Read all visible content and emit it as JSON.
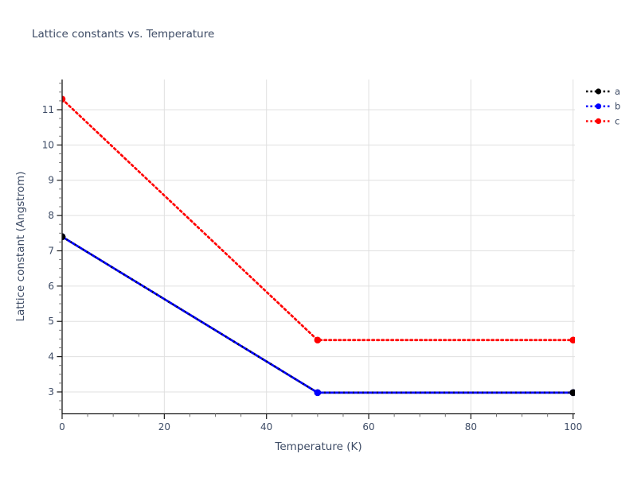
{
  "chart_data": {
    "type": "line",
    "title": "Lattice constants vs. Temperature",
    "xlabel": "Temperature (K)",
    "ylabel": "Lattice constant (Angstrom)",
    "x": [
      0,
      50,
      100
    ],
    "series": [
      {
        "name": "a",
        "color": "#000000",
        "values": [
          7.4,
          2.98,
          2.98
        ],
        "line_style": "dotted",
        "marker": "circle"
      },
      {
        "name": "b",
        "color": "#0000ff",
        "values": [
          7.4,
          2.98,
          2.98
        ],
        "line_style": "dotted",
        "marker": "circle"
      },
      {
        "name": "c",
        "color": "#ff0000",
        "values": [
          11.3,
          4.47,
          4.47
        ],
        "line_style": "dotted",
        "marker": "circle"
      }
    ],
    "xticks": [
      0,
      20,
      40,
      60,
      80,
      100
    ],
    "yticks": [
      3,
      4,
      5,
      6,
      7,
      8,
      9,
      10,
      11
    ],
    "xlim": [
      0,
      100.35
    ],
    "ylim": [
      2.38,
      11.856
    ],
    "x_minor_step": 5,
    "y_minor_step": 0.25,
    "grid": true,
    "legend": {
      "position": "outside-top-right",
      "entries": [
        "a",
        "b",
        "c"
      ]
    }
  },
  "style": {
    "text_color": "#3e4c66",
    "grid_color": "#e0e0e0",
    "axis_color": "#1a1a1a",
    "minor_tick_color": "#707070",
    "background": "#ffffff"
  }
}
